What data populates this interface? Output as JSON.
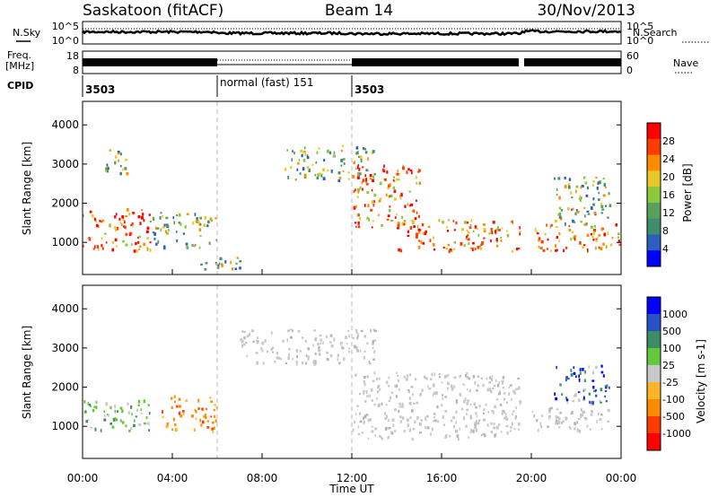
{
  "header": {
    "station": "Saskatoon (fitACF)",
    "beam": "Beam 14",
    "date": "30/Nov/2013"
  },
  "top_panels": {
    "nsky_label": "N.Sky",
    "nsearch_label": "N.Search",
    "noise_ticks": [
      "10^5",
      "10^0"
    ],
    "freq_label_1": "Freq.",
    "freq_label_2": "[MHz]",
    "freq_ticks": [
      "18",
      "8"
    ],
    "nave_label": "Nave",
    "nave_ticks": [
      "60",
      "0"
    ],
    "cpid_label": "CPID",
    "cpid_segments": [
      "3503",
      "normal (fast) 151",
      "3503"
    ]
  },
  "colors": {
    "power": [
      "#0000ff",
      "#2d5fbf",
      "#3f8c6e",
      "#5aa05a",
      "#8cc83c",
      "#e6c828",
      "#ff8c00",
      "#ff3c00",
      "#ff0000"
    ],
    "velocity": [
      "#0000ff",
      "#2850c8",
      "#3c8c64",
      "#64c83c",
      "#c8c8c8",
      "#ffb428",
      "#ff8c00",
      "#ff3c00",
      "#ff0000"
    ]
  },
  "chart_data": [
    {
      "type": "heatmap",
      "name": "power-panel",
      "xlabel": "",
      "ylabel": "Slant Range [km]",
      "x_range": [
        "00:00",
        "00:00"
      ],
      "ylim": [
        180,
        4600
      ],
      "y_ticks": [
        1000,
        2000,
        3000,
        4000
      ],
      "colorbar": {
        "label": "Power [dB]",
        "ticks": [
          4,
          8,
          12,
          16,
          20,
          24,
          28
        ],
        "range": [
          0,
          32
        ]
      },
      "echo_regions": [
        {
          "t": [
            0.0,
            3.0
          ],
          "r": [
            800,
            1900
          ],
          "level": "high"
        },
        {
          "t": [
            1.0,
            2.0
          ],
          "r": [
            2600,
            3400
          ],
          "level": "mid"
        },
        {
          "t": [
            3.0,
            6.0
          ],
          "r": [
            900,
            1800
          ],
          "level": "mid"
        },
        {
          "t": [
            5.0,
            7.0
          ],
          "r": [
            300,
            700
          ],
          "level": "low"
        },
        {
          "t": [
            9.0,
            13.0
          ],
          "r": [
            2600,
            3500
          ],
          "level": "mid"
        },
        {
          "t": [
            12.0,
            15.0
          ],
          "r": [
            1400,
            3000
          ],
          "level": "high"
        },
        {
          "t": [
            14.0,
            19.5
          ],
          "r": [
            800,
            1600
          ],
          "level": "high"
        },
        {
          "t": [
            20.0,
            24.0
          ],
          "r": [
            800,
            1500
          ],
          "level": "high"
        },
        {
          "t": [
            21.0,
            23.5
          ],
          "r": [
            1500,
            2700
          ],
          "level": "mid"
        }
      ]
    },
    {
      "type": "heatmap",
      "name": "velocity-panel",
      "xlabel": "Time UT",
      "ylabel": "Slant Range [km]",
      "x_ticks": [
        "00:00",
        "04:00",
        "08:00",
        "12:00",
        "16:00",
        "20:00",
        "00:00"
      ],
      "ylim": [
        180,
        4600
      ],
      "y_ticks": [
        1000,
        2000,
        3000,
        4000
      ],
      "colorbar": {
        "label": "Velocity [m s-1]",
        "ticks": [
          1000,
          500,
          100,
          25,
          -25,
          -100,
          -500,
          -1000
        ]
      },
      "echo_regions": [
        {
          "t": [
            0.0,
            3.0
          ],
          "r": [
            900,
            1700
          ],
          "level": "green"
        },
        {
          "t": [
            3.5,
            6.0
          ],
          "r": [
            900,
            1800
          ],
          "level": "orange"
        },
        {
          "t": [
            7.0,
            13.0
          ],
          "r": [
            2600,
            3500
          ],
          "level": "grey"
        },
        {
          "t": [
            12.0,
            19.5
          ],
          "r": [
            700,
            2400
          ],
          "level": "grey"
        },
        {
          "t": [
            20.0,
            24.0
          ],
          "r": [
            900,
            1500
          ],
          "level": "grey"
        },
        {
          "t": [
            21.0,
            23.5
          ],
          "r": [
            1600,
            2600
          ],
          "level": "blue"
        }
      ]
    }
  ]
}
